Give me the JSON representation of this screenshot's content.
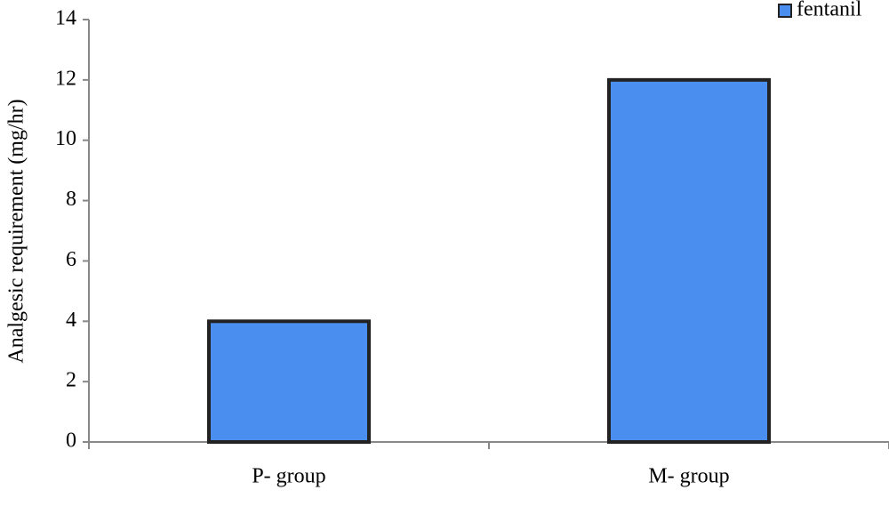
{
  "chart_data": {
    "type": "bar",
    "y_label": "Analgesic requirement (mg/hr)",
    "categories": [
      "P- group",
      "M- group"
    ],
    "series": [
      {
        "name": "fentanil",
        "color": "#4a8ff0",
        "values": [
          4,
          12
        ]
      }
    ],
    "ylim": [
      0,
      14
    ],
    "yticks": [
      0,
      2,
      4,
      6,
      8,
      10,
      12,
      14
    ],
    "legend": "top-right"
  }
}
